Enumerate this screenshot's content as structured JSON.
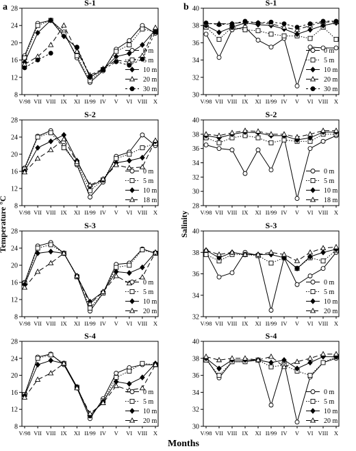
{
  "panel_labels": {
    "left": "a",
    "right": "b"
  },
  "common_xlabel": "Months",
  "chart_data": [
    {
      "type": "line",
      "panel": "a",
      "title": "S-1",
      "ylabel": "",
      "ylim": [
        8,
        28
      ],
      "yticks": [
        8,
        12,
        16,
        20,
        24,
        28
      ],
      "categories": [
        "V/98",
        "VII",
        "VIII",
        "IX",
        "XI",
        "II/99",
        "IV",
        "V",
        "VI",
        "VIII",
        "X"
      ],
      "series": [
        {
          "name": "0 m",
          "values": [
            17.0,
            24.5,
            25.2,
            22.5,
            16.5,
            10.8,
            13.5,
            18.5,
            20.5,
            24.0,
            22.2
          ]
        },
        {
          "name": "5 m",
          "values": [
            16.5,
            24.0,
            25.2,
            22.0,
            17.0,
            11.2,
            13.8,
            18.0,
            19.5,
            23.2,
            22.5
          ]
        },
        {
          "name": "10 m",
          "values": [
            15.5,
            22.3,
            25.2,
            21.5,
            18.8,
            12.0,
            13.8,
            16.8,
            17.5,
            19.5,
            23.0
          ]
        },
        {
          "name": "20 m",
          "values": [
            15.0,
            16.8,
            19.5,
            24.0,
            18.0,
            12.5,
            14.0,
            16.0,
            15.5,
            17.0,
            23.5
          ]
        },
        {
          "name": "30 m",
          "values": [
            14.2,
            16.0,
            17.6,
            null,
            19.0,
            12.2,
            13.8,
            15.6,
            14.8,
            16.2,
            22.5
          ]
        }
      ]
    },
    {
      "type": "line",
      "panel": "a",
      "title": "S-2",
      "ylabel": "",
      "ylim": [
        8,
        28
      ],
      "yticks": [
        8,
        12,
        16,
        20,
        24,
        28
      ],
      "categories": [
        "V/98",
        "VII",
        "VIII",
        "IX",
        "XI",
        "II/99",
        "IV",
        "V",
        "VI",
        "VIII",
        "X"
      ],
      "series": [
        {
          "name": "0 m",
          "values": [
            16.8,
            24.2,
            25.5,
            22.0,
            17.5,
            10.0,
            13.5,
            19.5,
            20.5,
            24.5,
            22.0
          ]
        },
        {
          "name": "5 m",
          "values": [
            16.5,
            24.0,
            25.0,
            21.5,
            17.8,
            11.5,
            14.0,
            19.0,
            20.0,
            21.5,
            22.5
          ]
        },
        {
          "name": "10 m",
          "values": [
            16.0,
            21.5,
            23.0,
            24.5,
            18.5,
            12.5,
            14.0,
            18.0,
            18.5,
            19.2,
            23.0
          ]
        },
        {
          "name": "18 m",
          "values": [
            15.8,
            19.0,
            21.0,
            23.5,
            18.2,
            12.8,
            14.2,
            17.5,
            16.8,
            17.0,
            23.2
          ]
        }
      ]
    },
    {
      "type": "line",
      "panel": "a",
      "title": "S-3",
      "ylabel": "Temperature °C",
      "ylim": [
        8,
        28
      ],
      "yticks": [
        8,
        12,
        16,
        20,
        24,
        28
      ],
      "categories": [
        "V/98",
        "VII",
        "VIII",
        "IX",
        "XI",
        "II/99",
        "IV",
        "V",
        "VI",
        "VIII",
        "X"
      ],
      "series": [
        {
          "name": "0 m",
          "values": [
            16.0,
            24.5,
            25.3,
            22.8,
            17.5,
            9.3,
            13.5,
            20.2,
            20.5,
            23.8,
            22.8
          ]
        },
        {
          "name": "5 m",
          "values": [
            15.8,
            24.0,
            24.8,
            22.8,
            17.3,
            10.0,
            13.5,
            19.5,
            20.0,
            23.6,
            22.8
          ]
        },
        {
          "name": "10 m",
          "values": [
            15.5,
            22.8,
            23.2,
            22.8,
            17.5,
            11.5,
            13.8,
            18.5,
            18.2,
            19.5,
            23.0
          ]
        },
        {
          "name": "20 m",
          "values": [
            14.8,
            18.5,
            20.5,
            22.8,
            17.5,
            11.0,
            13.8,
            17.5,
            15.8,
            17.2,
            23.0
          ]
        }
      ]
    },
    {
      "type": "line",
      "panel": "a",
      "title": "S-4",
      "ylabel": "",
      "ylim": [
        8,
        28
      ],
      "yticks": [
        8,
        12,
        16,
        20,
        24,
        28
      ],
      "categories": [
        "V/98",
        "VII",
        "VIII",
        "IX",
        "XI",
        "II/99",
        "IV",
        "V",
        "VI",
        "VIII",
        "X"
      ],
      "series": [
        {
          "name": "0 m",
          "values": [
            15.5,
            24.3,
            25.0,
            22.5,
            17.0,
            9.8,
            14.5,
            20.5,
            21.8,
            22.5,
            22.5
          ]
        },
        {
          "name": "5 m",
          "values": [
            15.5,
            24.0,
            24.8,
            22.8,
            17.2,
            10.5,
            14.0,
            19.5,
            21.0,
            22.8,
            22.5
          ]
        },
        {
          "name": "10 m",
          "values": [
            15.2,
            22.5,
            23.5,
            22.8,
            17.3,
            10.5,
            13.8,
            18.5,
            18.0,
            19.5,
            22.8
          ]
        },
        {
          "name": "20 m",
          "values": [
            14.8,
            19.0,
            20.5,
            22.8,
            17.0,
            11.0,
            13.5,
            17.5,
            16.5,
            17.0,
            22.5
          ]
        }
      ]
    },
    {
      "type": "line",
      "panel": "b",
      "title": "S-1",
      "ylabel": "",
      "ylim": [
        30,
        40
      ],
      "yticks": [
        30,
        32,
        34,
        36,
        38,
        40
      ],
      "categories": [
        "V/98",
        "VII",
        "VIII",
        "IX",
        "XI",
        "II/99",
        "IV",
        "V",
        "VI",
        "VIII",
        "X"
      ],
      "series": [
        {
          "name": "0 m",
          "values": [
            37.0,
            34.3,
            37.5,
            37.8,
            36.3,
            35.5,
            36.5,
            31.0,
            35.5,
            35.4,
            35.4
          ]
        },
        {
          "name": "5 m",
          "values": [
            37.8,
            36.4,
            37.8,
            37.5,
            37.4,
            37.0,
            36.8,
            36.8,
            36.5,
            37.8,
            36.4
          ]
        },
        {
          "name": "10 m",
          "values": [
            38.0,
            37.2,
            37.8,
            38.3,
            38.1,
            38.0,
            37.6,
            37.0,
            37.5,
            38.0,
            38.3
          ]
        },
        {
          "name": "20 m",
          "values": [
            38.2,
            38.2,
            38.2,
            38.4,
            38.3,
            38.2,
            37.8,
            37.5,
            38.0,
            38.4,
            38.4
          ]
        },
        {
          "name": "30 m",
          "values": [
            38.3,
            38.1,
            38.2,
            38.5,
            38.3,
            38.4,
            38.2,
            37.8,
            38.2,
            38.5,
            38.5
          ]
        }
      ]
    },
    {
      "type": "line",
      "panel": "b",
      "title": "S-2",
      "ylabel": "",
      "ylim": [
        28,
        40
      ],
      "yticks": [
        28,
        30,
        32,
        34,
        36,
        38,
        40
      ],
      "categories": [
        "V/98",
        "VII",
        "VIII",
        "IX",
        "XI",
        "II/99",
        "IV",
        "V",
        "VI",
        "VIII",
        "X"
      ],
      "series": [
        {
          "name": "0 m",
          "values": [
            36.5,
            36.0,
            35.8,
            32.5,
            35.8,
            33.0,
            37.5,
            29.0,
            36.0,
            37.0,
            37.8
          ]
        },
        {
          "name": "5 m",
          "values": [
            37.5,
            36.8,
            37.5,
            37.8,
            37.5,
            36.8,
            37.2,
            37.0,
            37.0,
            38.0,
            38.0
          ]
        },
        {
          "name": "10 m",
          "values": [
            37.8,
            37.5,
            38.0,
            38.3,
            38.2,
            37.8,
            37.8,
            37.2,
            37.5,
            38.3,
            38.3
          ]
        },
        {
          "name": "18 m",
          "values": [
            38.0,
            37.8,
            38.2,
            38.5,
            38.4,
            38.0,
            38.0,
            37.6,
            38.0,
            38.5,
            38.5
          ]
        }
      ]
    },
    {
      "type": "line",
      "panel": "b",
      "title": "S-3",
      "ylabel": "Salinity",
      "ylim": [
        32,
        40
      ],
      "yticks": [
        32,
        34,
        36,
        38,
        40
      ],
      "categories": [
        "V/98",
        "VII",
        "VIII",
        "IX",
        "XI",
        "II/99",
        "IV",
        "V",
        "VI",
        "VIII",
        "X"
      ],
      "series": [
        {
          "name": "0 m",
          "values": [
            38.0,
            35.7,
            36.1,
            38.0,
            37.7,
            32.6,
            37.5,
            35.0,
            35.8,
            36.5,
            38.0
          ]
        },
        {
          "name": "5 m",
          "values": [
            37.8,
            37.2,
            37.8,
            37.8,
            37.7,
            37.0,
            37.5,
            36.5,
            37.5,
            37.2,
            38.2
          ]
        },
        {
          "name": "10 m",
          "values": [
            38.2,
            37.5,
            38.0,
            37.8,
            37.8,
            37.8,
            37.5,
            36.5,
            37.6,
            38.0,
            38.3
          ]
        },
        {
          "name": "20 m",
          "values": [
            38.2,
            37.8,
            38.0,
            37.8,
            37.8,
            38.0,
            37.8,
            37.2,
            38.0,
            38.4,
            38.5
          ]
        }
      ]
    },
    {
      "type": "line",
      "panel": "b",
      "title": "S-4",
      "ylabel": "",
      "ylim": [
        30,
        40
      ],
      "yticks": [
        30,
        32,
        34,
        36,
        38,
        40
      ],
      "categories": [
        "V/98",
        "VII",
        "VIII",
        "IX",
        "XI",
        "II/99",
        "IV",
        "V",
        "VI",
        "VIII",
        "X"
      ],
      "series": [
        {
          "name": "0 m",
          "values": [
            38.0,
            35.7,
            37.6,
            37.6,
            37.8,
            32.5,
            37.5,
            30.5,
            35.8,
            37.5,
            38.0
          ]
        },
        {
          "name": "5 m",
          "values": [
            37.8,
            36.0,
            37.6,
            37.6,
            37.8,
            37.0,
            37.2,
            36.5,
            36.0,
            37.5,
            38.2
          ]
        },
        {
          "name": "10 m",
          "values": [
            38.0,
            36.8,
            37.8,
            37.8,
            37.8,
            37.5,
            37.8,
            36.8,
            37.5,
            38.2,
            38.2
          ]
        },
        {
          "name": "20 m",
          "values": [
            38.2,
            37.8,
            38.0,
            38.0,
            37.8,
            38.2,
            37.0,
            37.6,
            38.0,
            38.5,
            38.5
          ]
        }
      ]
    }
  ]
}
